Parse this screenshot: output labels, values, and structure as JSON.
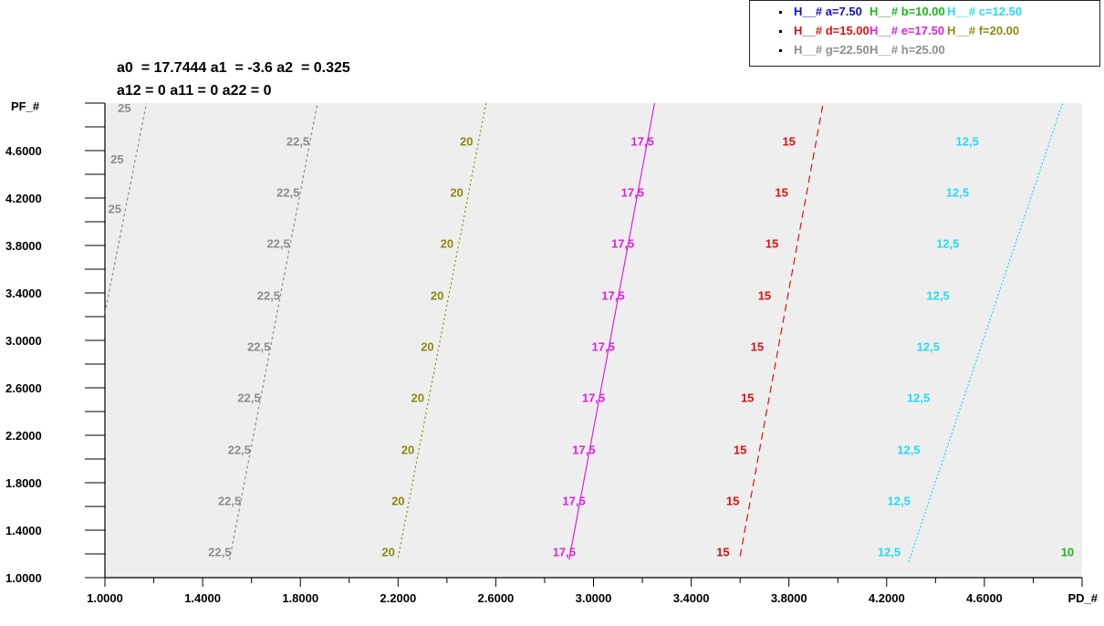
{
  "equation": {
    "line1": "a0  = 17.7444 a1  = -3.6 a2  = 0.325",
    "line2": "a12 = 0 a11 = 0 a22 = 0"
  },
  "legend": {
    "rows": [
      [
        {
          "text": "H__# a=7.50",
          "color": "#1010c8"
        },
        {
          "text": "H__# b=10.00",
          "color": "#1ab81a"
        },
        {
          "text": "H__# c=12.50",
          "color": "#22dcf0"
        }
      ],
      [
        {
          "text": "H__# d=15.00",
          "color": "#e01010"
        },
        {
          "text": "H__# e=17.50",
          "color": "#e020e0"
        },
        {
          "text": "H__# f=20.00",
          "color": "#8a8a10"
        }
      ],
      [
        {
          "text": "H__# g=22.50",
          "color": "#8c8c8c"
        },
        {
          "text": "H__# h=25.00",
          "color": "#8c8c8c"
        }
      ]
    ]
  },
  "chart_data": {
    "type": "line",
    "xlabel": "PD_#",
    "ylabel": "PF_#",
    "xlim": [
      1.0,
      5.0
    ],
    "ylim": [
      1.0,
      5.0
    ],
    "xticks": [
      "1.0000",
      "1.4000",
      "1.8000",
      "2.2000",
      "2.6000",
      "3.0000",
      "3.4000",
      "3.8000",
      "4.2000",
      "4.6000"
    ],
    "yticks": [
      "1.0000",
      "1.4000",
      "1.8000",
      "2.2000",
      "2.6000",
      "3.0000",
      "3.4000",
      "3.8000",
      "4.2000",
      "4.6000"
    ],
    "xtick_values": [
      1.0,
      1.4,
      1.8,
      2.2,
      2.6,
      3.0,
      3.4,
      3.8,
      4.2,
      4.6
    ],
    "ytick_values": [
      1.0,
      1.4,
      1.8,
      2.2,
      2.6,
      3.0,
      3.4,
      3.8,
      4.2,
      4.6
    ],
    "plot_background": "#eeeeee",
    "series": [
      {
        "name": "H__# c=12.50",
        "color": "#22dcf0",
        "dash": "2,2",
        "label": "12,5",
        "line": [
          [
            4.29,
            1.13
          ],
          [
            4.92,
            5.0
          ]
        ],
        "label_points": [
          [
            4.21,
            1.22
          ],
          [
            4.25,
            1.65
          ],
          [
            4.29,
            2.08
          ],
          [
            4.33,
            2.52
          ],
          [
            4.37,
            2.95
          ],
          [
            4.41,
            3.38
          ],
          [
            4.45,
            3.82
          ],
          [
            4.49,
            4.25
          ],
          [
            4.53,
            4.68
          ]
        ]
      },
      {
        "name": "H__# d=15.00",
        "color": "#e01010",
        "dash": "8,5",
        "label": "15",
        "line": [
          [
            3.6,
            1.18
          ],
          [
            3.94,
            5.0
          ]
        ],
        "label_points": [
          [
            3.53,
            1.22
          ],
          [
            3.57,
            1.65
          ],
          [
            3.6,
            2.08
          ],
          [
            3.63,
            2.52
          ],
          [
            3.67,
            2.95
          ],
          [
            3.7,
            3.38
          ],
          [
            3.73,
            3.82
          ],
          [
            3.77,
            4.25
          ],
          [
            3.8,
            4.68
          ]
        ]
      },
      {
        "name": "H__# e=17.50",
        "color": "#e020e0",
        "dash": "",
        "label": "17,5",
        "line": [
          [
            2.9,
            1.15
          ],
          [
            3.25,
            5.0
          ]
        ],
        "label_points": [
          [
            2.88,
            1.22
          ],
          [
            2.92,
            1.65
          ],
          [
            2.96,
            2.08
          ],
          [
            3.0,
            2.52
          ],
          [
            3.04,
            2.95
          ],
          [
            3.08,
            3.38
          ],
          [
            3.12,
            3.82
          ],
          [
            3.16,
            4.25
          ],
          [
            3.2,
            4.68
          ]
        ]
      },
      {
        "name": "H__# f=20.00",
        "color": "#8a8a10",
        "dash": "2,3",
        "label": "20",
        "line": [
          [
            2.2,
            1.17
          ],
          [
            2.56,
            5.0
          ]
        ],
        "label_points": [
          [
            2.16,
            1.22
          ],
          [
            2.2,
            1.65
          ],
          [
            2.24,
            2.08
          ],
          [
            2.28,
            2.52
          ],
          [
            2.32,
            2.95
          ],
          [
            2.36,
            3.38
          ],
          [
            2.4,
            3.82
          ],
          [
            2.44,
            4.25
          ],
          [
            2.48,
            4.68
          ]
        ]
      },
      {
        "name": "H__# g=22.50",
        "color": "#8c8c8c",
        "dash": "3,3",
        "label": "22,5",
        "line": [
          [
            1.51,
            1.15
          ],
          [
            1.87,
            5.0
          ]
        ],
        "label_points": [
          [
            1.47,
            1.22
          ],
          [
            1.51,
            1.65
          ],
          [
            1.55,
            2.08
          ],
          [
            1.59,
            2.52
          ],
          [
            1.63,
            2.95
          ],
          [
            1.67,
            3.38
          ],
          [
            1.71,
            3.82
          ],
          [
            1.75,
            4.25
          ],
          [
            1.79,
            4.68
          ]
        ]
      },
      {
        "name": "H__# h=25.00",
        "color": "#8c8c8c",
        "dash": "3,3",
        "label": "25",
        "line": [
          [
            1.0,
            3.23
          ],
          [
            1.17,
            5.0
          ]
        ],
        "label_points": [
          [
            1.04,
            4.11
          ],
          [
            1.05,
            4.53
          ],
          [
            1.08,
            4.96
          ]
        ]
      },
      {
        "name": "H__# b=10.00",
        "color": "#1ab81a",
        "dash": "",
        "label": "10",
        "line": [],
        "label_points": [
          [
            4.94,
            1.22
          ]
        ]
      }
    ]
  }
}
